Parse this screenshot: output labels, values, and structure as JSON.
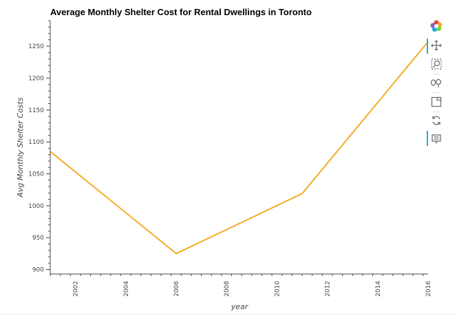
{
  "chart_data": {
    "type": "line",
    "title": "Average Monthly Shelter Cost for Rental Dwellings in Toronto",
    "xlabel": "year",
    "ylabel": "Avg Monthly Shelter Costs",
    "x": [
      2001,
      2006,
      2011,
      2016
    ],
    "series": [
      {
        "values": [
          1085,
          925,
          1019,
          1257
        ],
        "color": "#f5ab27"
      }
    ],
    "xlim": [
      2001,
      2016
    ],
    "ylim": [
      893,
      1290
    ],
    "x_ticks": [
      "2002",
      "2004",
      "2006",
      "2008",
      "2010",
      "2012",
      "2014",
      "2016"
    ],
    "y_ticks": [
      "900",
      "950",
      "1000",
      "1050",
      "1100",
      "1150",
      "1200",
      "1250"
    ],
    "grid": false,
    "legend": false
  },
  "toolbar": {
    "tools": [
      {
        "name": "bokeh-logo-icon"
      },
      {
        "name": "pan-icon"
      },
      {
        "name": "box-zoom-icon"
      },
      {
        "name": "wheel-zoom-icon"
      },
      {
        "name": "save-icon"
      },
      {
        "name": "reset-icon"
      },
      {
        "name": "hover-icon"
      }
    ]
  }
}
